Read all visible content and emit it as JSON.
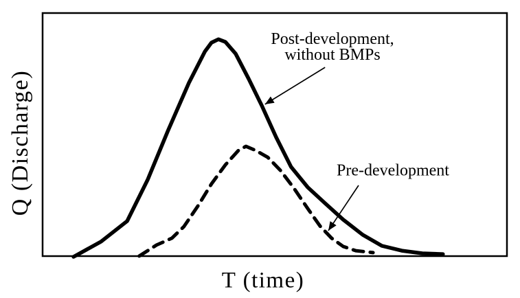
{
  "figure": {
    "background_color": "#ffffff",
    "line_color": "#000000",
    "text_color": "#000000"
  },
  "chart_data": {
    "type": "line",
    "title": "",
    "xlabel": "T (time)",
    "ylabel": "Q (Discharge)",
    "xlim": [
      0,
      100
    ],
    "ylim": [
      0,
      100
    ],
    "grid": false,
    "ticks": "none",
    "frame": "full-box",
    "legend_position": "none (curves labeled by arrow annotations)",
    "series": [
      {
        "name": "Post-development, without BMPs",
        "line_style": "solid",
        "color": "#000000",
        "points": [
          [
            6.8,
            0
          ],
          [
            12.7,
            6.2
          ],
          [
            18.3,
            14.6
          ],
          [
            22.7,
            31.5
          ],
          [
            27.1,
            51.7
          ],
          [
            31.6,
            71.3
          ],
          [
            35.0,
            84.0
          ],
          [
            36.4,
            87.6
          ],
          [
            37.9,
            89.0
          ],
          [
            39.4,
            87.9
          ],
          [
            41.6,
            83.1
          ],
          [
            44.4,
            72.8
          ],
          [
            47.3,
            61.5
          ],
          [
            50.3,
            48.9
          ],
          [
            53.5,
            36.8
          ],
          [
            57.1,
            28.4
          ],
          [
            60.8,
            21.9
          ],
          [
            64.7,
            15.2
          ],
          [
            68.9,
            9.0
          ],
          [
            73.0,
            4.5
          ],
          [
            77.3,
            2.5
          ],
          [
            81.7,
            1.4
          ],
          [
            86.1,
            1.1
          ]
        ]
      },
      {
        "name": "Pre-development",
        "line_style": "dashed",
        "color": "#000000",
        "points": [
          [
            20.9,
            0.3
          ],
          [
            24.6,
            4.8
          ],
          [
            27.9,
            7.6
          ],
          [
            30.5,
            12.4
          ],
          [
            33.5,
            20.8
          ],
          [
            36.4,
            29.8
          ],
          [
            39.4,
            37.6
          ],
          [
            42.2,
            43.5
          ],
          [
            43.8,
            45.2
          ],
          [
            45.9,
            43.5
          ],
          [
            48.5,
            40.7
          ],
          [
            51.2,
            35.4
          ],
          [
            54.1,
            28.1
          ],
          [
            57.1,
            19.7
          ],
          [
            59.7,
            12.6
          ],
          [
            62.2,
            7.6
          ],
          [
            64.7,
            4.2
          ],
          [
            67.4,
            2.5
          ],
          [
            71.1,
            1.7
          ]
        ]
      }
    ],
    "annotations": {
      "post": {
        "line1": "Post-development,",
        "line2": "without BMPs",
        "arrow_from": [
          60.8,
          77.5
        ],
        "arrow_to": [
          47.9,
          62.4
        ]
      },
      "pre": {
        "text": "Pre-development",
        "arrow_from": [
          68.0,
          29.2
        ],
        "arrow_to": [
          61.5,
          10.7
        ]
      }
    }
  }
}
